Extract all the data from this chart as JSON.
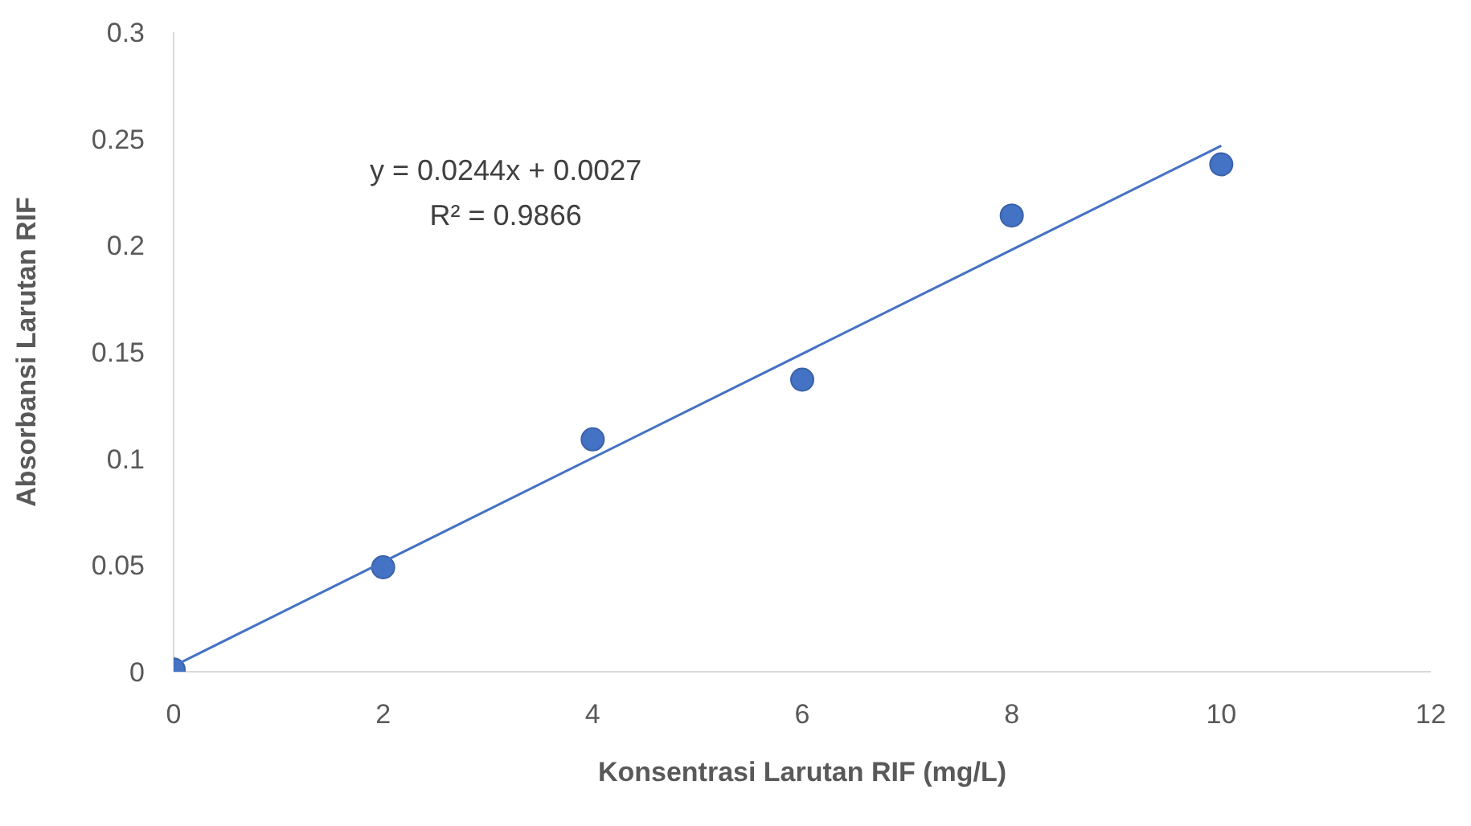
{
  "chart_data": {
    "type": "scatter",
    "xlabel": "Konsentrasi Larutan RIF (mg/L)",
    "ylabel": "Absorbansi Larutan RIF",
    "xlim": [
      0,
      12
    ],
    "xticks": [
      0,
      2,
      4,
      6,
      8,
      10,
      12
    ],
    "ylim": [
      0,
      0.3
    ],
    "yticks": [
      0,
      0.05,
      0.1,
      0.15,
      0.2,
      0.25,
      0.3
    ],
    "grid": false,
    "legend": false,
    "marker": "circle",
    "series": [
      {
        "type": "scatter",
        "color": "#4472c4",
        "x": [
          0,
          2,
          4,
          6,
          8,
          10
        ],
        "values": [
          0.001,
          0.049,
          0.109,
          0.137,
          0.214,
          0.238
        ]
      },
      {
        "type": "line",
        "color": "#4472c4",
        "line_style": "solid",
        "marker": "none",
        "x": [
          0,
          10
        ],
        "values": [
          0.0027,
          0.2467
        ]
      }
    ],
    "annotations": [
      "y = 0.0244x + 0.0027",
      "R² = 0.9866"
    ]
  }
}
